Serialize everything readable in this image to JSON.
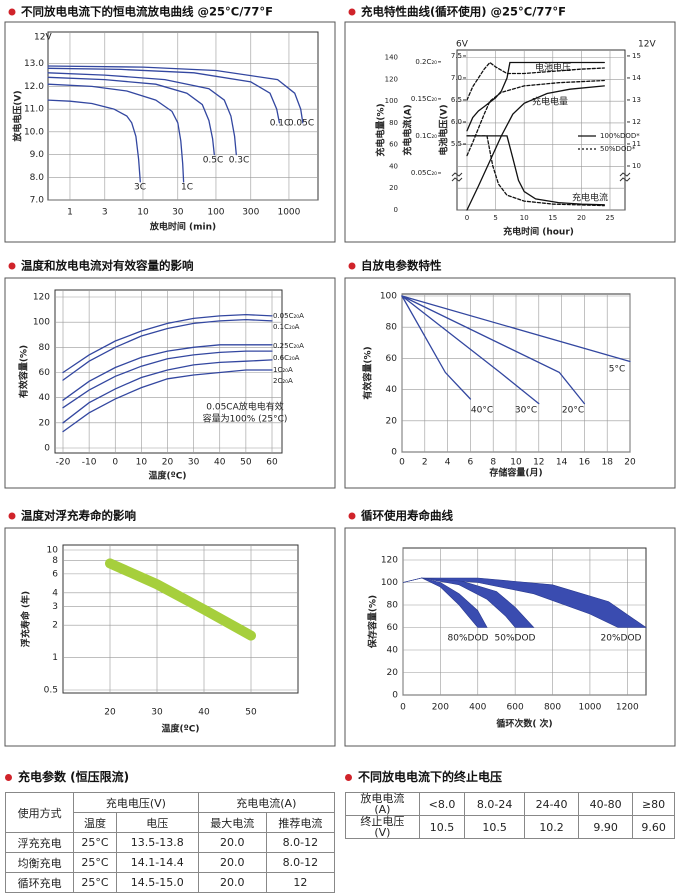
{
  "chart_data": [
    {
      "type": "line",
      "title": "不同放电电流下的恒电流放电曲线 @25°C/77°F",
      "xlabel": "放电时间 (min)",
      "ylabel": "放电电压(V)",
      "y_unit": "12V",
      "xlog": true,
      "xlim": [
        0.5,
        2500
      ],
      "xticks": [
        1,
        3,
        10,
        30,
        100,
        300,
        1000
      ],
      "ylim": [
        7,
        14
      ],
      "yticks": [
        {
          "value": 7,
          "label": "7.0"
        },
        {
          "value": 8,
          "label": "8.0"
        },
        {
          "value": 9,
          "label": "9.0"
        },
        {
          "value": 10,
          "label": "10.0"
        },
        {
          "value": 11,
          "label": "11.0"
        },
        {
          "value": 12,
          "label": "12.0"
        },
        {
          "value": 13,
          "label": "13.0"
        }
      ],
      "grid": true,
      "color": "#3347a0",
      "series": [
        {
          "name": "3C",
          "x": [
            0.5,
            1,
            2,
            4,
            6,
            7,
            8,
            8.7,
            9.2
          ],
          "values": [
            11.4,
            11.35,
            11.25,
            11.0,
            10.7,
            10.4,
            9.8,
            8.8,
            7.8
          ]
        },
        {
          "name": "1C",
          "x": [
            0.5,
            2,
            6,
            15,
            25,
            30,
            33,
            35,
            36
          ],
          "values": [
            12.1,
            12.0,
            11.8,
            11.4,
            10.9,
            10.4,
            9.6,
            8.6,
            7.8
          ]
        },
        {
          "name": "0.5C",
          "x": [
            0.5,
            3,
            15,
            40,
            65,
            80,
            90,
            95
          ],
          "values": [
            12.4,
            12.3,
            12.1,
            11.7,
            11.2,
            10.5,
            9.7,
            9.0
          ]
        },
        {
          "name": "0.3C",
          "x": [
            0.5,
            3,
            20,
            80,
            130,
            160,
            180,
            190
          ],
          "values": [
            12.6,
            12.5,
            12.3,
            11.9,
            11.4,
            10.7,
            9.8,
            9.0
          ]
        },
        {
          "name": "0.1C",
          "x": [
            0.5,
            5,
            50,
            300,
            550,
            680,
            740
          ],
          "values": [
            12.8,
            12.75,
            12.6,
            12.2,
            11.7,
            11.0,
            10.4
          ]
        },
        {
          "name": "0.05C",
          "x": [
            0.5,
            10,
            100,
            700,
            1200,
            1450,
            1550
          ],
          "values": [
            12.9,
            12.85,
            12.7,
            12.3,
            11.7,
            11.0,
            10.4
          ]
        }
      ]
    },
    {
      "type": "line",
      "title": "充电特性曲线(循环使用) @25°C/77°F",
      "xlabel": "充电时间 (hour)",
      "ylabel": "充电电量(%)",
      "y4label": "充电电流(A)",
      "y3label": "电池电压(V)",
      "y3_unit": "6V",
      "y2_unit": "12V",
      "xlim": [
        0,
        25
      ],
      "xticks": [
        0,
        5,
        10,
        15,
        20,
        25
      ],
      "ylim": [
        0,
        147
      ],
      "yticks": [
        0,
        20,
        40,
        60,
        80,
        100,
        120,
        140
      ],
      "y2lim": [
        8,
        15.27
      ],
      "y2ticks": [
        10,
        11,
        12,
        13,
        14,
        15
      ],
      "y3lim": [
        4,
        7.635
      ],
      "y3ticks": [
        5.5,
        {
          "value": 6,
          "label": "6.0"
        },
        6.5,
        {
          "value": 7,
          "label": "7.0"
        },
        7.5
      ],
      "y4lim": [
        0,
        0.216
      ],
      "y4ticks": [
        {
          "value": 0.05,
          "label": "0.05C₂₀"
        },
        {
          "value": 0.1,
          "label": "0.1C₂₀"
        },
        {
          "value": 0.15,
          "label": "0.15C₂₀"
        },
        {
          "value": 0.2,
          "label": "0.2C₂₀"
        }
      ],
      "grid": true,
      "color": "#111111",
      "legend": [
        {
          "label": "100%DOD*",
          "dash": false
        },
        {
          "label": "50%DOD*",
          "dash": true
        }
      ],
      "series": [
        {
          "name": "电池电压",
          "axis": "y2",
          "dash": false,
          "x": [
            0,
            1,
            2,
            3,
            4,
            5,
            6,
            7,
            7.5,
            24
          ],
          "values": [
            11.6,
            12.2,
            12.5,
            12.7,
            12.9,
            13.1,
            13.4,
            14.0,
            14.7,
            14.7
          ]
        },
        {
          "axis": "y2",
          "dash": true,
          "x": [
            0,
            1,
            2,
            3,
            4,
            5,
            7,
            10,
            15,
            20,
            24
          ],
          "values": [
            13.0,
            13.6,
            14.0,
            14.4,
            14.7,
            14.5,
            14.2,
            14.2,
            14.3,
            14.4,
            14.45
          ]
        },
        {
          "name": "充电电量",
          "axis": "y",
          "dash": false,
          "x": [
            0,
            2,
            4,
            6,
            8,
            10,
            14,
            18,
            24
          ],
          "values": [
            0,
            22,
            45,
            68,
            88,
            98,
            107,
            111,
            114
          ]
        },
        {
          "axis": "y",
          "dash": true,
          "x": [
            0,
            1,
            2,
            3,
            4,
            6,
            10,
            16,
            24
          ],
          "values": [
            50,
            62,
            75,
            88,
            100,
            108,
            114,
            117,
            119
          ]
        },
        {
          "name": "充电电流",
          "axis": "y4",
          "dash": false,
          "x": [
            0,
            7,
            8,
            9,
            10,
            12,
            16,
            20,
            24
          ],
          "values": [
            0.1,
            0.1,
            0.07,
            0.04,
            0.025,
            0.015,
            0.01,
            0.008,
            0.007
          ]
        },
        {
          "axis": "y4",
          "dash": true,
          "x": [
            0,
            3.5,
            4.5,
            5.5,
            7,
            10,
            15,
            24
          ],
          "values": [
            0.1,
            0.1,
            0.06,
            0.035,
            0.02,
            0.012,
            0.008,
            0.006
          ]
        }
      ]
    },
    {
      "type": "line",
      "title": "温度和放电电流对有效容量的影响",
      "xlabel": "温度(ºC)",
      "ylabel": "有效容量(%)",
      "note": [
        "0.05CA放电电有效",
        "容量为100% (25°C)"
      ],
      "xlim": [
        -20,
        60
      ],
      "xticks": [
        -20,
        -10,
        0,
        10,
        20,
        30,
        40,
        50,
        60
      ],
      "ylim": [
        0,
        120
      ],
      "yticks": [
        0,
        20,
        40,
        60,
        80,
        100,
        120
      ],
      "grid": true,
      "color": "#3347a0",
      "x": [
        -20,
        -10,
        0,
        10,
        20,
        30,
        40,
        50,
        60
      ],
      "series": [
        {
          "name": "0.05C₂₀A",
          "values": [
            60,
            74,
            85,
            93,
            99,
            103,
            105,
            106,
            105
          ]
        },
        {
          "name": "0.1C₂₀A",
          "values": [
            54,
            69,
            80,
            89,
            95,
            99,
            101,
            102,
            101
          ]
        },
        {
          "name": "0.25C₂₀A",
          "values": [
            38,
            53,
            64,
            72,
            77,
            80,
            82,
            82,
            82
          ]
        },
        {
          "name": "0.6C₂₀A",
          "values": [
            32,
            46,
            57,
            65,
            71,
            74,
            76,
            77,
            77
          ]
        },
        {
          "name": "1C₂₀A",
          "values": [
            20,
            36,
            47,
            56,
            62,
            66,
            68,
            69,
            70
          ]
        },
        {
          "name": "2C₂₀A",
          "values": [
            13,
            28,
            39,
            48,
            55,
            58,
            60,
            62,
            62
          ]
        }
      ]
    },
    {
      "type": "line",
      "title": "自放电参数特性",
      "xlabel": "存储容量(月)",
      "ylabel": "有效容量(%)",
      "xlim": [
        0,
        20
      ],
      "xticks": [
        0,
        2,
        4,
        6,
        8,
        10,
        12,
        14,
        16,
        18,
        20
      ],
      "ylim": [
        0,
        100
      ],
      "yticks": [
        0,
        20,
        40,
        60,
        80,
        100
      ],
      "grid": true,
      "color": "#3347a0",
      "series": [
        {
          "name": "5°C",
          "x": [
            0,
            20
          ],
          "values": [
            100,
            58
          ]
        },
        {
          "name": "40°C",
          "x": [
            0,
            3.8,
            6
          ],
          "values": [
            100,
            51,
            34
          ]
        },
        {
          "name": "30°C",
          "x": [
            0,
            8.6,
            12
          ],
          "values": [
            100,
            51,
            31
          ]
        },
        {
          "name": "20°C",
          "x": [
            0,
            13.8,
            16
          ],
          "values": [
            100,
            51,
            31
          ]
        }
      ]
    },
    {
      "type": "line",
      "title": "温度对浮充寿命的影响",
      "xlabel": "温度(ºC)",
      "ylabel": "浮充寿命 (年)",
      "xlim": [
        10,
        60
      ],
      "xticks": [
        20,
        30,
        40,
        50
      ],
      "ylog": true,
      "ylim": [
        0.5,
        10
      ],
      "yticks": [
        0.5,
        1,
        2,
        3,
        4,
        6,
        8,
        10
      ],
      "grid": true,
      "color": "#a6cf3c",
      "series": [
        {
          "x": [
            20,
            30,
            40,
            50
          ],
          "values": [
            7.5,
            4.8,
            2.8,
            1.6
          ]
        }
      ]
    },
    {
      "type": "area",
      "title": "循环使用寿命曲线",
      "xlabel": "循环次数( 次)",
      "ylabel": "保存容量(%)",
      "xlim": [
        0,
        1300
      ],
      "xticks": [
        0,
        200,
        400,
        600,
        800,
        1000,
        1200
      ],
      "ylim": [
        0,
        120
      ],
      "yticks": [
        0,
        20,
        40,
        60,
        80,
        100,
        120
      ],
      "grid": true,
      "color": "#3a4cb0",
      "series": [
        {
          "name": "80%DOD",
          "x_upper": [
            0,
            100,
            200,
            300,
            400,
            450
          ],
          "upper": [
            100,
            104,
            100,
            90,
            75,
            60
          ],
          "x_lower": [
            100,
            200,
            300,
            350,
            400
          ],
          "lower": [
            104,
            96,
            80,
            70,
            60
          ]
        },
        {
          "name": "50%DOD",
          "x_upper": [
            0,
            100,
            300,
            500,
            600,
            700
          ],
          "upper": [
            100,
            104,
            102,
            92,
            78,
            60
          ],
          "x_lower": [
            100,
            300,
            450,
            550,
            600
          ],
          "lower": [
            104,
            98,
            85,
            70,
            60
          ]
        },
        {
          "name": "20%DOD",
          "x_upper": [
            0,
            100,
            400,
            800,
            1100,
            1300
          ],
          "upper": [
            100,
            104,
            104,
            98,
            83,
            60
          ],
          "x_lower": [
            100,
            400,
            700,
            1000,
            1150
          ],
          "lower": [
            104,
            100,
            90,
            72,
            60
          ]
        }
      ]
    }
  ],
  "tables": [
    {
      "title": "充电参数 (恒压限流)",
      "header": [
        "使用方式",
        "充电电压(V)",
        "充电电流(A)"
      ],
      "subheader": [
        "温度",
        "电压",
        "最大电流",
        "推荐电流"
      ],
      "rows": [
        [
          "浮充充电",
          "25°C",
          "13.5-13.8",
          "20.0",
          "8.0-12"
        ],
        [
          "均衡充电",
          "25°C",
          "14.1-14.4",
          "20.0",
          "8.0-12"
        ],
        [
          "循环充电",
          "25°C",
          "14.5-15.0",
          "20.0",
          "12"
        ]
      ]
    },
    {
      "title": "不同放电电流下的终止电压",
      "row_labels": [
        [
          "放电电流",
          "(A)"
        ],
        [
          "终止电压",
          "(V)"
        ]
      ],
      "rows": [
        [
          "<8.0",
          "8.0-24",
          "24-40",
          "40-80",
          "≥80"
        ],
        [
          "10.5",
          "10.5",
          "10.2",
          "9.90",
          "9.60"
        ]
      ]
    }
  ]
}
